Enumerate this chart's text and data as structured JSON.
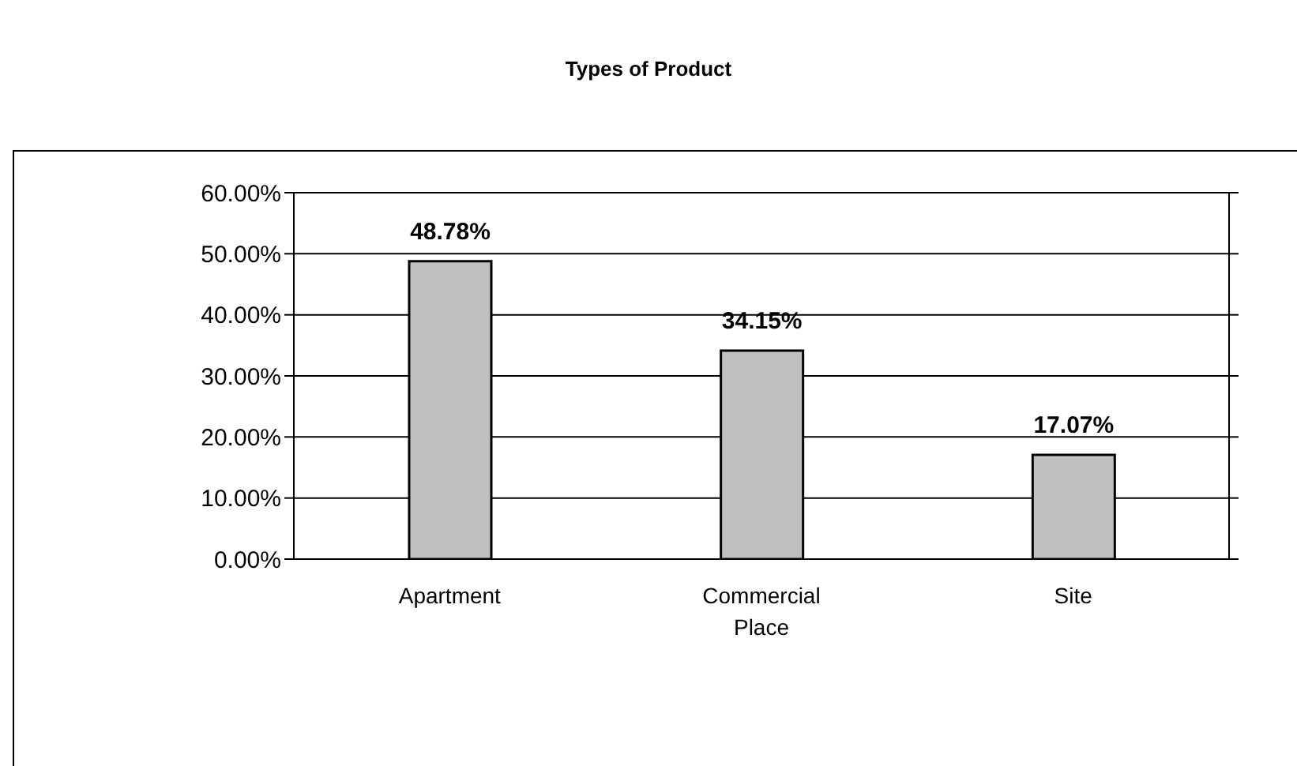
{
  "chart_data": {
    "type": "bar",
    "title": "Types of Product",
    "categories": [
      "Apartment",
      "Commercial Place",
      "Site"
    ],
    "values": [
      48.78,
      34.15,
      17.07
    ],
    "value_labels": [
      "48.78%",
      "34.15%",
      "17.07%"
    ],
    "color": "#c0c0c0",
    "ylim": [
      0,
      60
    ],
    "yticks": [
      {
        "value": 0,
        "label": "0.00%"
      },
      {
        "value": 10,
        "label": "10.00%"
      },
      {
        "value": 20,
        "label": "20.00%"
      },
      {
        "value": 30,
        "label": "30.00%"
      },
      {
        "value": 40,
        "label": "40.00%"
      },
      {
        "value": 50,
        "label": "50.00%"
      },
      {
        "value": 60,
        "label": "60.00%"
      }
    ],
    "grid": "y",
    "legend": false
  }
}
